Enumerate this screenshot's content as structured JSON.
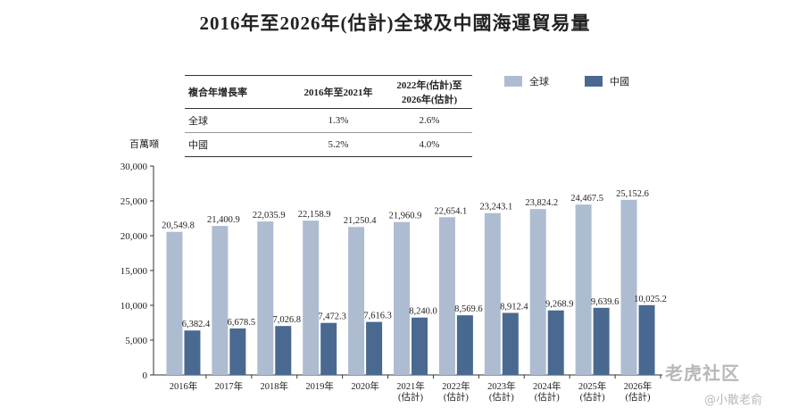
{
  "title": "2016年至2026年(估計)全球及中國海運貿易量",
  "cagr_table": {
    "headers": [
      "複合年增長率",
      "2016年至2021年",
      "2022年(估計)至\n2026年(估計)"
    ],
    "rows": [
      [
        "全球",
        "1.3%",
        "2.6%"
      ],
      [
        "中國",
        "5.2%",
        "4.0%"
      ]
    ]
  },
  "watermark": {
    "logo_text": "老虎社区",
    "user_text": "@小散老俞"
  },
  "colors": {
    "global": "#aebcd1",
    "china": "#4a6990",
    "axis": "#333333"
  },
  "chart_data": {
    "type": "bar",
    "ylabel": "百萬噸",
    "ylim": [
      0,
      30000
    ],
    "yticks": [
      "0",
      "5,000",
      "10,000",
      "15,000",
      "20,000",
      "25,000",
      "30,000"
    ],
    "ytick_values": [
      0,
      5000,
      10000,
      15000,
      20000,
      25000,
      30000
    ],
    "categories": [
      [
        "2016年"
      ],
      [
        "2017年"
      ],
      [
        "2018年"
      ],
      [
        "2019年"
      ],
      [
        "2020年"
      ],
      [
        "2021年",
        "(估計)"
      ],
      [
        "2022年",
        "(估計)"
      ],
      [
        "2023年",
        "(估計)"
      ],
      [
        "2024年",
        "(估計)"
      ],
      [
        "2025年",
        "(估計)"
      ],
      [
        "2026年",
        "(估計)"
      ]
    ],
    "legend_position": "top-right",
    "series": [
      {
        "name": "全球",
        "values": [
          20549.8,
          21400.9,
          22035.9,
          22158.9,
          21250.4,
          21960.9,
          22654.1,
          23243.1,
          23824.2,
          24467.5,
          25152.6
        ],
        "labels": [
          "20,549.8",
          "21,400.9",
          "22,035.9",
          "22,158.9",
          "21,250.4",
          "21,960.9",
          "22,654.1",
          "23,243.1",
          "23,824.2",
          "24,467.5",
          "25,152.6"
        ]
      },
      {
        "name": "中國",
        "values": [
          6382.4,
          6678.5,
          7026.8,
          7472.3,
          7616.3,
          8240.0,
          8569.6,
          8912.4,
          9268.9,
          9639.6,
          10025.2
        ],
        "labels": [
          "6,382.4",
          "6,678.5",
          "7,026.8",
          "7,472.3",
          "7,616.3",
          "8,240.0",
          "8,569.6",
          "8,912.4",
          "9,268.9",
          "9,639.6",
          "10,025.2"
        ]
      }
    ]
  }
}
